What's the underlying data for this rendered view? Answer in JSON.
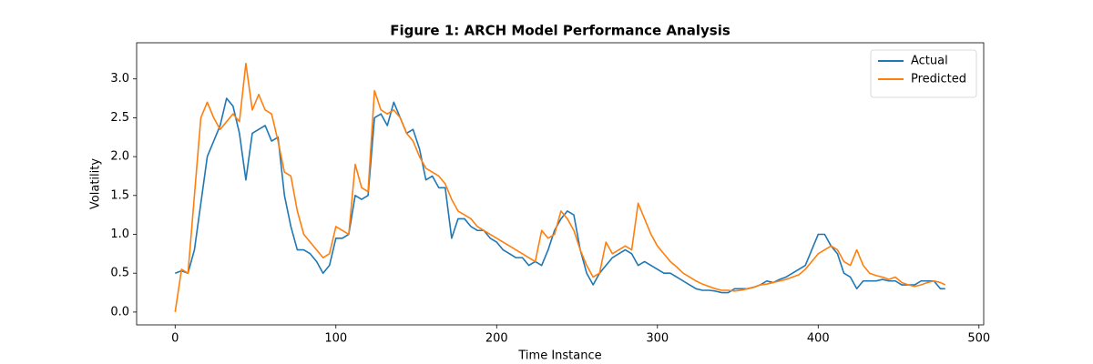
{
  "chart_data": {
    "type": "line",
    "title": "Figure 1: ARCH Model Performance Analysis",
    "x_label": "Time Instance",
    "y_label": "Volatility",
    "x": [
      0,
      4,
      8,
      12,
      16,
      20,
      24,
      28,
      32,
      36,
      40,
      44,
      48,
      52,
      56,
      60,
      64,
      68,
      72,
      76,
      80,
      84,
      88,
      92,
      96,
      100,
      104,
      108,
      112,
      116,
      120,
      124,
      128,
      132,
      136,
      140,
      144,
      148,
      152,
      156,
      160,
      164,
      168,
      172,
      176,
      180,
      184,
      188,
      192,
      196,
      200,
      204,
      208,
      212,
      216,
      220,
      224,
      228,
      232,
      236,
      240,
      244,
      248,
      252,
      256,
      260,
      264,
      268,
      272,
      276,
      280,
      284,
      288,
      292,
      296,
      300,
      304,
      308,
      312,
      316,
      320,
      324,
      328,
      332,
      336,
      340,
      344,
      348,
      352,
      356,
      360,
      364,
      368,
      372,
      376,
      380,
      384,
      388,
      392,
      396,
      400,
      404,
      408,
      412,
      416,
      420,
      424,
      428,
      432,
      436,
      440,
      444,
      448,
      452,
      456,
      460,
      464,
      468,
      472,
      476,
      479
    ],
    "series": [
      {
        "name": "Actual",
        "color": "#1f77b4",
        "values": [
          0.5,
          0.53,
          0.5,
          0.8,
          1.4,
          2.0,
          2.2,
          2.4,
          2.75,
          2.65,
          2.3,
          1.7,
          2.3,
          2.35,
          2.4,
          2.2,
          2.25,
          1.5,
          1.1,
          0.8,
          0.8,
          0.75,
          0.65,
          0.5,
          0.6,
          0.95,
          0.95,
          1.0,
          1.5,
          1.45,
          1.5,
          2.5,
          2.55,
          2.4,
          2.7,
          2.5,
          2.3,
          2.35,
          2.1,
          1.7,
          1.75,
          1.6,
          1.6,
          0.95,
          1.2,
          1.2,
          1.1,
          1.05,
          1.05,
          0.95,
          0.9,
          0.8,
          0.75,
          0.7,
          0.7,
          0.6,
          0.65,
          0.6,
          0.8,
          1.05,
          1.2,
          1.3,
          1.25,
          0.8,
          0.5,
          0.35,
          0.5,
          0.6,
          0.7,
          0.75,
          0.8,
          0.75,
          0.6,
          0.65,
          0.6,
          0.55,
          0.5,
          0.5,
          0.45,
          0.4,
          0.35,
          0.3,
          0.28,
          0.28,
          0.27,
          0.25,
          0.25,
          0.3,
          0.3,
          0.3,
          0.32,
          0.35,
          0.4,
          0.38,
          0.42,
          0.45,
          0.5,
          0.55,
          0.6,
          0.8,
          1.0,
          1.0,
          0.85,
          0.75,
          0.5,
          0.45,
          0.3,
          0.4,
          0.4,
          0.4,
          0.42,
          0.4,
          0.4,
          0.35,
          0.35,
          0.35,
          0.4,
          0.4,
          0.4,
          0.3,
          0.3
        ]
      },
      {
        "name": "Predicted",
        "color": "#ff7f0e",
        "values": [
          0,
          0.55,
          0.5,
          1.5,
          2.5,
          2.7,
          2.5,
          2.35,
          2.45,
          2.55,
          2.45,
          3.2,
          2.6,
          2.8,
          2.6,
          2.55,
          2.2,
          1.8,
          1.75,
          1.3,
          1.0,
          0.9,
          0.8,
          0.7,
          0.75,
          1.1,
          1.05,
          1.0,
          1.9,
          1.6,
          1.55,
          2.85,
          2.6,
          2.55,
          2.6,
          2.5,
          2.3,
          2.2,
          2.0,
          1.85,
          1.8,
          1.75,
          1.65,
          1.45,
          1.3,
          1.25,
          1.2,
          1.1,
          1.05,
          1.0,
          0.95,
          0.9,
          0.85,
          0.8,
          0.75,
          0.7,
          0.65,
          1.05,
          0.95,
          1.0,
          1.3,
          1.2,
          1.05,
          0.8,
          0.6,
          0.45,
          0.5,
          0.9,
          0.75,
          0.8,
          0.85,
          0.8,
          1.4,
          1.2,
          1.0,
          0.85,
          0.75,
          0.65,
          0.58,
          0.5,
          0.45,
          0.4,
          0.36,
          0.33,
          0.3,
          0.28,
          0.28,
          0.27,
          0.28,
          0.3,
          0.32,
          0.35,
          0.36,
          0.38,
          0.4,
          0.42,
          0.45,
          0.48,
          0.55,
          0.65,
          0.75,
          0.8,
          0.85,
          0.8,
          0.65,
          0.6,
          0.8,
          0.6,
          0.5,
          0.47,
          0.45,
          0.42,
          0.45,
          0.38,
          0.35,
          0.33,
          0.35,
          0.38,
          0.4,
          0.38,
          0.35
        ]
      }
    ],
    "xlim": [
      -23.95,
      502.95
    ],
    "ylim": [
      -0.165,
      3.465
    ],
    "xticks": [
      0,
      100,
      200,
      300,
      400,
      500
    ],
    "yticks": [
      {
        "value": 0,
        "label": "0.0"
      },
      0.5,
      {
        "value": 1,
        "label": "1.0"
      },
      1.5,
      {
        "value": 2,
        "label": "2.0"
      },
      2.5,
      {
        "value": 3,
        "label": "3.0"
      }
    ],
    "grid": false,
    "legend": "upper right"
  }
}
